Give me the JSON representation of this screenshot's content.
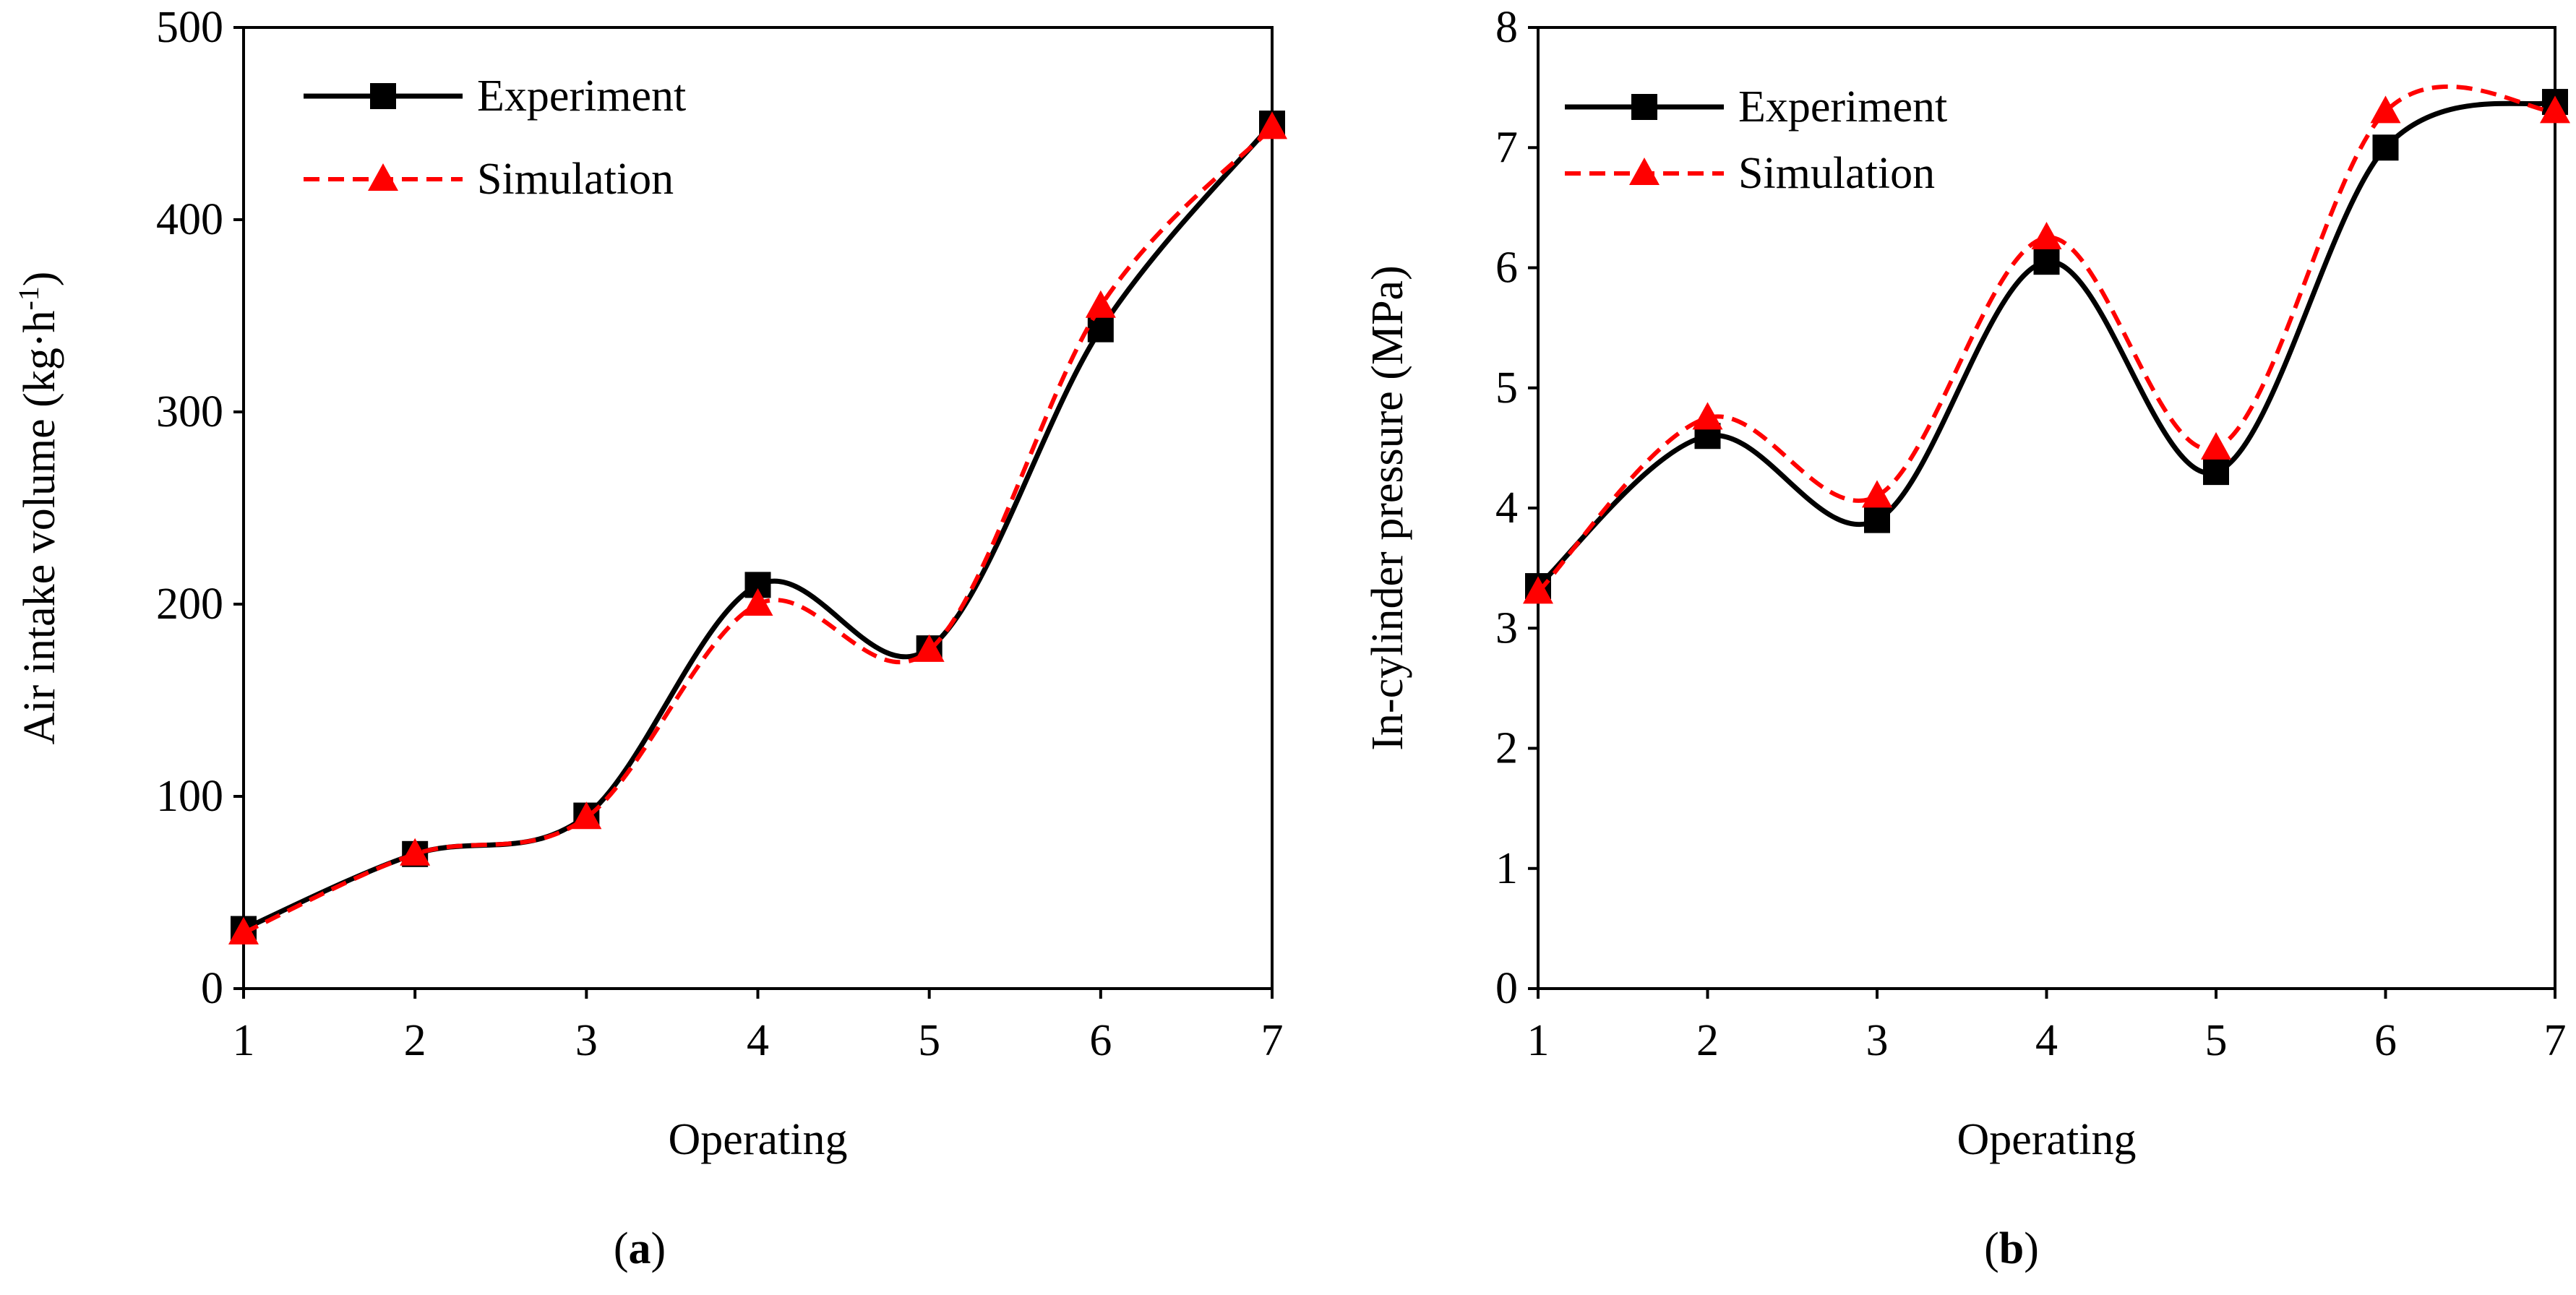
{
  "chart_data": [
    {
      "type": "line",
      "panel": "a",
      "caption": {
        "open": "(",
        "letter": "a",
        "close": ")"
      },
      "xlabel": "Operating",
      "ylabel": "Air intake    volume (kg·h",
      "ylabel_sup": "-1",
      "ylabel_close": ")",
      "x": [
        1,
        2,
        3,
        4,
        5,
        6,
        7
      ],
      "xlim": [
        1,
        7
      ],
      "ylim": [
        0,
        500
      ],
      "xticks": [
        1,
        2,
        3,
        4,
        5,
        6,
        7
      ],
      "yticks": [
        0,
        100,
        200,
        300,
        400,
        500
      ],
      "grid": false,
      "legend_position": "top-left",
      "series": [
        {
          "name": "Experiment",
          "color": "#000000",
          "marker": "square",
          "style": "solid",
          "values": [
            31,
            70,
            90,
            210,
            177,
            343,
            450
          ]
        },
        {
          "name": "Simulation",
          "color": "#ff0000",
          "marker": "triangle",
          "style": "dashed",
          "values": [
            29,
            70,
            89,
            200,
            176,
            355,
            448
          ]
        }
      ]
    },
    {
      "type": "line",
      "panel": "b",
      "caption": {
        "open": "(",
        "letter": "b",
        "close": ")"
      },
      "xlabel": "Operating",
      "ylabel": "In-cylinder pressure (MPa)",
      "x": [
        1,
        2,
        3,
        4,
        5,
        6,
        7
      ],
      "xlim": [
        1,
        7
      ],
      "ylim": [
        0,
        8
      ],
      "xticks": [
        1,
        2,
        3,
        4,
        5,
        6,
        7
      ],
      "yticks": [
        0,
        1,
        2,
        3,
        4,
        5,
        6,
        7,
        8
      ],
      "grid": false,
      "legend_position": "top-left",
      "series": [
        {
          "name": "Experiment",
          "color": "#000000",
          "marker": "square",
          "style": "solid",
          "values": [
            3.35,
            4.6,
            3.9,
            6.05,
            4.3,
            7.0,
            7.38
          ]
        },
        {
          "name": "Simulation",
          "color": "#ff0000",
          "marker": "triangle",
          "style": "dashed",
          "values": [
            3.3,
            4.75,
            4.1,
            6.25,
            4.5,
            7.3,
            7.3
          ]
        }
      ]
    }
  ]
}
